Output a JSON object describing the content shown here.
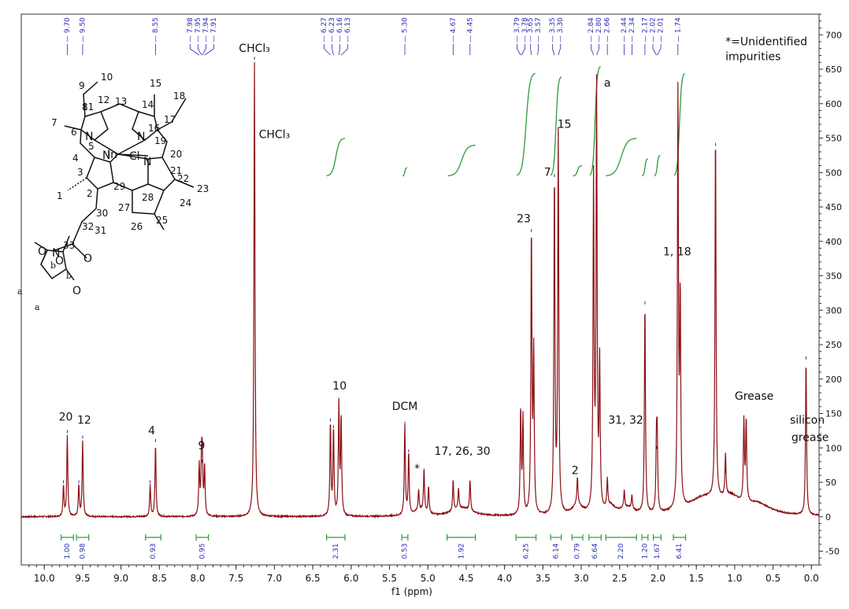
{
  "chart_data": {
    "type": "line",
    "xlabel": "f1 (ppm)",
    "xlim": [
      10.3,
      -0.1
    ],
    "ylim": [
      -70,
      730
    ],
    "x_ticks": [
      "10.0",
      "9.5",
      "9.0",
      "8.5",
      "8.0",
      "7.5",
      "7.0",
      "6.5",
      "6.0",
      "5.5",
      "5.0",
      "4.5",
      "4.0",
      "3.5",
      "3.0",
      "2.5",
      "2.0",
      "1.5",
      "1.0",
      "0.5",
      "0.0"
    ],
    "y_ticks": [
      "-50",
      "0",
      "50",
      "100",
      "150",
      "200",
      "250",
      "300",
      "350",
      "400",
      "450",
      "500",
      "550",
      "600",
      "650",
      "700"
    ],
    "peaks": [
      {
        "ppm": 9.75,
        "height": 45
      },
      {
        "ppm": 9.7,
        "height": 118
      },
      {
        "ppm": 9.55,
        "height": 45
      },
      {
        "ppm": 9.5,
        "height": 110
      },
      {
        "ppm": 8.62,
        "height": 45
      },
      {
        "ppm": 8.55,
        "height": 105
      },
      {
        "ppm": 7.98,
        "height": 72
      },
      {
        "ppm": 7.95,
        "height": 75
      },
      {
        "ppm": 7.94,
        "height": 75
      },
      {
        "ppm": 7.91,
        "height": 70
      },
      {
        "ppm": 7.26,
        "height": 660
      },
      {
        "ppm": 6.27,
        "height": 135
      },
      {
        "ppm": 6.23,
        "height": 125
      },
      {
        "ppm": 6.16,
        "height": 160
      },
      {
        "ppm": 6.13,
        "height": 140
      },
      {
        "ppm": 5.3,
        "height": 130
      },
      {
        "ppm": 5.25,
        "height": 90
      },
      {
        "ppm": 5.12,
        "height": 30
      },
      {
        "ppm": 5.05,
        "height": 62
      },
      {
        "ppm": 4.99,
        "height": 38
      },
      {
        "ppm": 4.67,
        "height": 45
      },
      {
        "ppm": 4.6,
        "height": 30
      },
      {
        "ppm": 4.45,
        "height": 45
      },
      {
        "ppm": 3.79,
        "height": 150
      },
      {
        "ppm": 3.76,
        "height": 140
      },
      {
        "ppm": 3.65,
        "height": 410
      },
      {
        "ppm": 3.62,
        "height": 230
      },
      {
        "ppm": 3.35,
        "height": 490
      },
      {
        "ppm": 3.3,
        "height": 550
      },
      {
        "ppm": 3.05,
        "height": 40
      },
      {
        "ppm": 2.84,
        "height": 480
      },
      {
        "ppm": 2.8,
        "height": 610
      },
      {
        "ppm": 2.76,
        "height": 210
      },
      {
        "ppm": 2.66,
        "height": 40
      },
      {
        "ppm": 2.44,
        "height": 25
      },
      {
        "ppm": 2.34,
        "height": 20
      },
      {
        "ppm": 2.17,
        "height": 305
      },
      {
        "ppm": 2.02,
        "height": 95
      },
      {
        "ppm": 2.01,
        "height": 95
      },
      {
        "ppm": 1.74,
        "height": 600
      },
      {
        "ppm": 1.71,
        "height": 300
      },
      {
        "ppm": 1.25,
        "height": 535
      },
      {
        "ppm": 1.12,
        "height": 60
      },
      {
        "ppm": 0.88,
        "height": 118
      },
      {
        "ppm": 0.85,
        "height": 118
      },
      {
        "ppm": 0.07,
        "height": 225
      }
    ],
    "peak_labels": [
      "9.70",
      "9.50",
      "8.55",
      "7.98",
      "7.95",
      "7.94",
      "7.91",
      "6.27",
      "6.23",
      "6.16",
      "6.13",
      "5.30",
      "4.67",
      "4.45",
      "3.79",
      "3.78",
      "3.65",
      "3.57",
      "3.35",
      "3.30",
      "2.84",
      "2.80",
      "2.66",
      "2.44",
      "2.34",
      "2.17",
      "2.02",
      "2.01",
      "1.74"
    ],
    "integrals": [
      {
        "value": "1.00",
        "ppm": 9.7,
        "from": 9.78,
        "to": 9.62
      },
      {
        "value": "0.98",
        "ppm": 9.5,
        "from": 9.58,
        "to": 9.42
      },
      {
        "value": "0.93",
        "ppm": 8.58,
        "from": 8.68,
        "to": 8.48
      },
      {
        "value": "0.95",
        "ppm": 7.94,
        "from": 8.02,
        "to": 7.86
      },
      {
        "value": "2.31",
        "ppm": 6.2,
        "from": 6.32,
        "to": 6.08
      },
      {
        "value": "0.53",
        "ppm": 5.3,
        "from": 5.34,
        "to": 5.26
      },
      {
        "value": "1.92",
        "ppm": 4.56,
        "from": 4.75,
        "to": 4.38
      },
      {
        "value": "6.25",
        "ppm": 3.72,
        "from": 3.85,
        "to": 3.59
      },
      {
        "value": "6.14",
        "ppm": 3.33,
        "from": 3.4,
        "to": 3.26
      },
      {
        "value": "0.79",
        "ppm": 3.05,
        "from": 3.12,
        "to": 2.98
      },
      {
        "value": "6.64",
        "ppm": 2.82,
        "from": 2.9,
        "to": 2.74
      },
      {
        "value": "2.20",
        "ppm": 2.48,
        "from": 2.68,
        "to": 2.28
      },
      {
        "value": "1.20",
        "ppm": 2.17,
        "from": 2.21,
        "to": 2.13
      },
      {
        "value": "1.67",
        "ppm": 2.01,
        "from": 2.06,
        "to": 1.96
      },
      {
        "value": "6.41",
        "ppm": 1.72,
        "from": 1.8,
        "to": 1.64
      }
    ],
    "annotations": [
      {
        "text": "20",
        "ppm": 9.72,
        "y": 140
      },
      {
        "text": "12",
        "ppm": 9.48,
        "y": 135
      },
      {
        "text": "4",
        "ppm": 8.6,
        "y": 120
      },
      {
        "text": "9",
        "ppm": 7.95,
        "y": 98
      },
      {
        "text": "CHCl₃",
        "ppm": 7.26,
        "y": 675
      },
      {
        "text": "CHCl₃",
        "ppm": 7.0,
        "y": 550
      },
      {
        "text": "10",
        "ppm": 6.15,
        "y": 185
      },
      {
        "text": "DCM",
        "ppm": 5.3,
        "y": 155
      },
      {
        "text": "*",
        "ppm": 5.14,
        "y": 65
      },
      {
        "text": "17, 26, 30",
        "ppm": 4.55,
        "y": 90
      },
      {
        "text": "23",
        "ppm": 3.75,
        "y": 428
      },
      {
        "text": "7",
        "ppm": 3.44,
        "y": 495
      },
      {
        "text": "15",
        "ppm": 3.22,
        "y": 565
      },
      {
        "text": "2",
        "ppm": 3.08,
        "y": 62
      },
      {
        "text": "a",
        "ppm": 2.66,
        "y": 625
      },
      {
        "text": "31, 32",
        "ppm": 2.42,
        "y": 135
      },
      {
        "text": "1, 18",
        "ppm": 1.75,
        "y": 380
      },
      {
        "text": "Grease",
        "ppm": 1.0,
        "y": 170
      },
      {
        "text": "silicon",
        "ppm": 0.28,
        "y": 135
      },
      {
        "text": "grease",
        "ppm": 0.26,
        "y": 110
      },
      {
        "text": "*=Unidentified",
        "ppm": 1.12,
        "y": 685
      },
      {
        "text": "impurities",
        "ppm": 1.12,
        "y": 663
      }
    ]
  },
  "molecule": {
    "metal": "In",
    "ligand": "Cl",
    "ring_labels": [
      "10",
      "9",
      "11",
      "12",
      "13",
      "15",
      "14",
      "18",
      "8",
      "17",
      "7",
      "6",
      "16",
      "5",
      "N",
      "N",
      "19",
      "In",
      "Cl",
      "4",
      "20",
      "3",
      "21",
      "N",
      "N",
      "22",
      "23",
      "1",
      "2",
      "29",
      "28",
      "24",
      "30",
      "27",
      "32",
      "26",
      "25",
      "31",
      "33",
      "O",
      "O",
      "N",
      "b",
      "b",
      "O",
      "O",
      "a",
      "a"
    ]
  }
}
